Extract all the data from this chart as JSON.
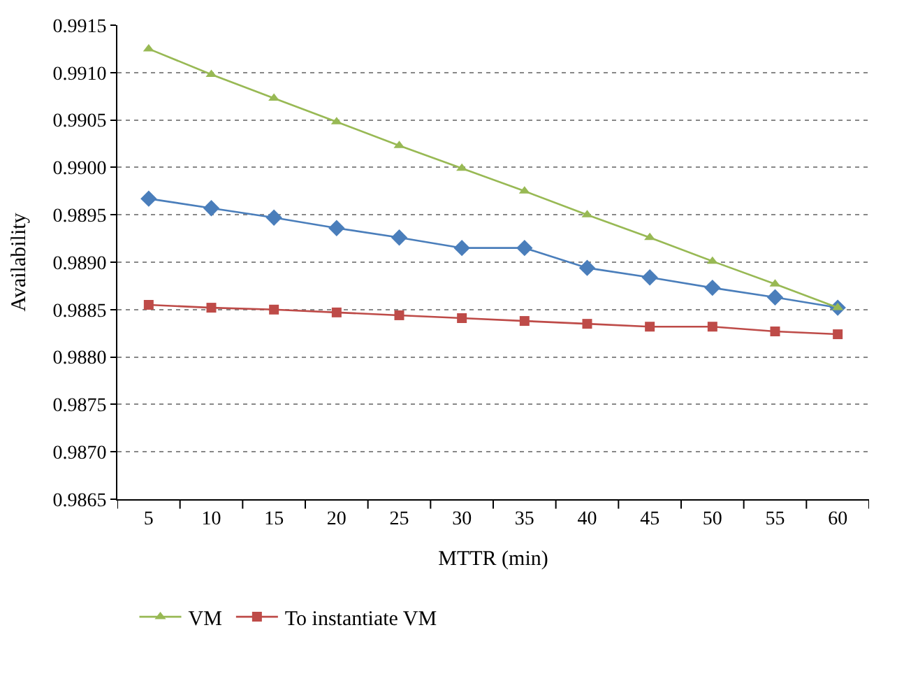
{
  "chart_data": {
    "type": "line",
    "xlabel": "MTTR (min)",
    "ylabel": "Availability",
    "categories": [
      "5",
      "10",
      "15",
      "20",
      "25",
      "30",
      "35",
      "40",
      "45",
      "50",
      "55",
      "60"
    ],
    "ylim": [
      0.9865,
      0.9915
    ],
    "yticks": [
      {
        "value": 0.9865,
        "label": "0.9865"
      },
      {
        "value": 0.987,
        "label": "0.9870"
      },
      {
        "value": 0.9875,
        "label": "0.9875"
      },
      {
        "value": 0.988,
        "label": "0.9880"
      },
      {
        "value": 0.9885,
        "label": "0.9885"
      },
      {
        "value": 0.989,
        "label": "0.9890"
      },
      {
        "value": 0.9895,
        "label": "0.9895"
      },
      {
        "value": 0.99,
        "label": "0.9900"
      },
      {
        "value": 0.9905,
        "label": "0.9905"
      },
      {
        "value": 0.991,
        "label": "0.9910"
      },
      {
        "value": 0.9915,
        "label": "0.9915"
      }
    ],
    "grid": "y",
    "legend": "bottom",
    "line_style": "solid",
    "series": [
      {
        "color": "#4a7ebb",
        "marker": "diamond",
        "values": [
          0.98967,
          0.98957,
          0.98947,
          0.98936,
          0.98926,
          0.98915,
          0.98915,
          0.98894,
          0.98884,
          0.98873,
          0.98863,
          0.98852
        ]
      },
      {
        "name": "VM",
        "color": "#98b954",
        "marker": "triangle",
        "values": [
          0.99125,
          0.99098,
          0.99073,
          0.99048,
          0.99023,
          0.98999,
          0.98975,
          0.9895,
          0.98926,
          0.98901,
          0.98877,
          0.98852
        ]
      },
      {
        "name": "To instantiate VM",
        "color": "#be4b48",
        "marker": "square",
        "values": [
          0.98855,
          0.98852,
          0.9885,
          0.98847,
          0.98844,
          0.98841,
          0.98838,
          0.98835,
          0.98832,
          0.98832,
          0.98827,
          0.98824
        ]
      }
    ]
  }
}
